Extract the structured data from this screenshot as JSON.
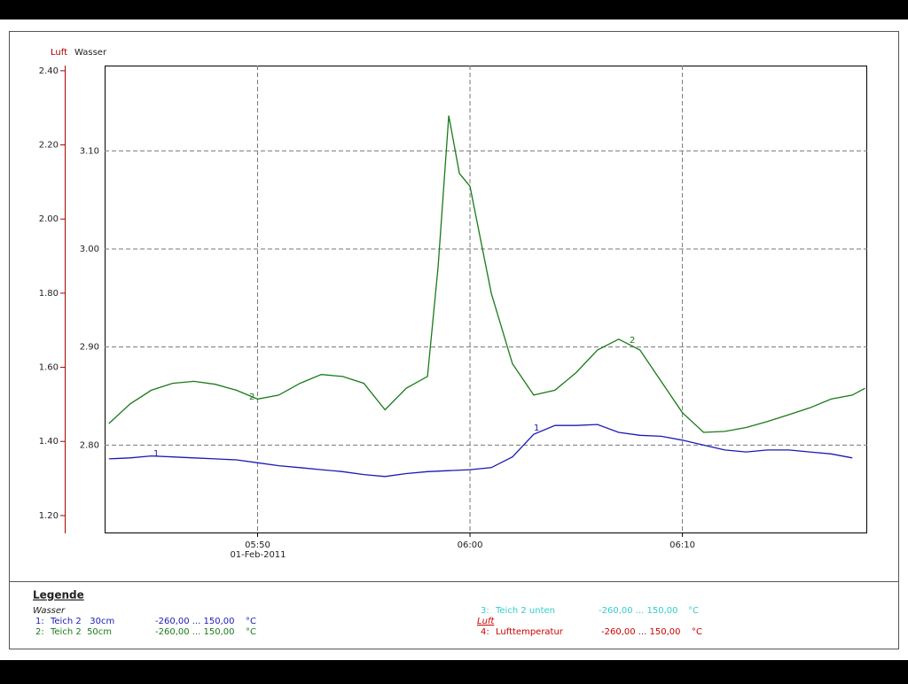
{
  "chart_data": {
    "type": "line",
    "y2_label": "Luft",
    "y_label": "Wasser",
    "x_label": "01-Feb-2011",
    "xlim": [
      342.8,
      378.7
    ],
    "xticks": [
      {
        "value": 350,
        "label": "05:50"
      },
      {
        "value": 360,
        "label": "06:00"
      },
      {
        "value": 370,
        "label": "06:10"
      }
    ],
    "ylim": [
      2.71,
      3.187
    ],
    "yticks": [
      {
        "value": 2.8,
        "label": "2.80"
      },
      {
        "value": 2.9,
        "label": "2.90"
      },
      {
        "value": 3.0,
        "label": "3.00"
      },
      {
        "value": 3.1,
        "label": "3.10"
      }
    ],
    "y2lim": [
      1.152,
      2.414
    ],
    "y2ticks": [
      {
        "value": 1.2,
        "label": "1.20"
      },
      {
        "value": 1.4,
        "label": "1.40"
      },
      {
        "value": 1.6,
        "label": "1.60"
      },
      {
        "value": 1.8,
        "label": "1.80"
      },
      {
        "value": 2.0,
        "label": "2.00"
      },
      {
        "value": 2.2,
        "label": "2.20"
      },
      {
        "value": 2.4,
        "label": "2.40"
      }
    ],
    "grid": true,
    "series": [
      {
        "name": "1",
        "color": "#1a1ab4",
        "curve_labels": [
          "1",
          "1"
        ],
        "x": [
          343,
          344,
          345,
          346,
          347,
          348,
          349,
          350,
          351,
          352,
          353,
          354,
          355,
          356,
          357,
          358,
          359,
          360,
          361,
          362,
          363,
          364,
          365,
          366,
          367,
          368,
          369,
          370,
          371,
          372,
          373,
          374,
          375,
          376,
          377,
          378
        ],
        "values": [
          2.786,
          2.787,
          2.789,
          2.788,
          2.787,
          2.786,
          2.785,
          2.782,
          2.779,
          2.777,
          2.775,
          2.773,
          2.77,
          2.768,
          2.771,
          2.773,
          2.774,
          2.775,
          2.777,
          2.788,
          2.811,
          2.82,
          2.82,
          2.821,
          2.813,
          2.81,
          2.809,
          2.805,
          2.8,
          2.795,
          2.793,
          2.795,
          2.795,
          2.793,
          2.791,
          2.787
        ]
      },
      {
        "name": "2",
        "color": "#1a7a1a",
        "curve_labels": [
          "2",
          "2"
        ],
        "x": [
          343,
          344,
          345,
          346,
          347,
          348,
          349,
          350,
          351,
          352,
          353,
          354,
          355,
          356,
          357,
          358,
          358.5,
          359,
          359.5,
          360,
          361,
          362,
          363,
          364,
          365,
          366,
          367,
          368,
          369,
          370,
          371,
          372,
          373,
          374,
          375,
          376,
          377,
          378,
          378.6
        ],
        "values": [
          2.822,
          2.842,
          2.856,
          2.863,
          2.865,
          2.862,
          2.856,
          2.847,
          2.851,
          2.863,
          2.872,
          2.87,
          2.863,
          2.836,
          2.858,
          2.87,
          2.982,
          3.136,
          3.077,
          3.064,
          2.955,
          2.883,
          2.851,
          2.856,
          2.874,
          2.897,
          2.908,
          2.897,
          2.865,
          2.833,
          2.813,
          2.814,
          2.818,
          2.824,
          2.831,
          2.838,
          2.847,
          2.851,
          2.858
        ]
      }
    ]
  },
  "legend": {
    "title": "Legende",
    "groups": [
      "Wasser",
      "Luft"
    ],
    "entries": [
      {
        "number": "1:",
        "name": "Teich 2   30cm",
        "range": "-260,00 ... 150,00",
        "unit": "°C",
        "color": "#1a1ab4"
      },
      {
        "number": "2:",
        "name": "Teich 2  50cm",
        "range": "-260,00 ... 150,00",
        "unit": "°C",
        "color": "#1a7a1a"
      },
      {
        "number": "3:",
        "name": "Teich 2 unten",
        "range": "-260,00 ... 150,00",
        "unit": "°C",
        "color": "#33cccc"
      },
      {
        "number": "4:",
        "name": "Lufttemperatur",
        "range": "-260,00 ... 150,00",
        "unit": "°C",
        "color": "#cc0000"
      }
    ]
  }
}
